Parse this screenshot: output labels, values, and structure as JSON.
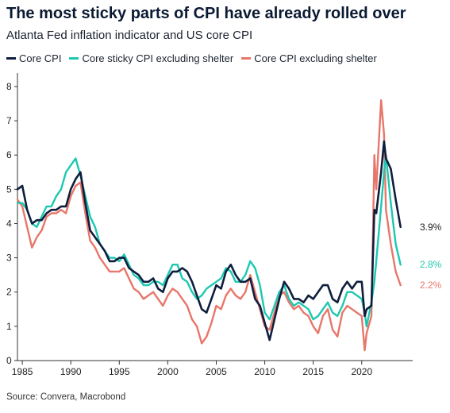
{
  "title": "The most sticky parts of CPI have already rolled over",
  "subtitle": "Atlanta Fed inflation indicator and US core CPI",
  "source": "Source: Convera, Macrobond",
  "colors": {
    "core_cpi": "#0f1e3d",
    "core_sticky_ex_shelter": "#1ec8b0",
    "core_ex_shelter": "#e8766a"
  },
  "legend": [
    {
      "label": "Core CPI",
      "color": "#0f1e3d"
    },
    {
      "label": "Core sticky CPI excluding shelter",
      "color": "#1ec8b0"
    },
    {
      "label": "Core CPI excluding shelter",
      "color": "#e8766a"
    }
  ],
  "end_labels": [
    {
      "text": "3.9%",
      "color": "#222222",
      "value": 3.9
    },
    {
      "text": "2.8%",
      "color": "#1ec8b0",
      "value": 2.8
    },
    {
      "text": "2.2%",
      "color": "#e8766a",
      "value": 2.2
    }
  ],
  "chart_data": {
    "type": "line",
    "xlim": [
      1984.5,
      2024.6
    ],
    "ylim": [
      0,
      8.3
    ],
    "x_ticks": [
      1985,
      1990,
      1995,
      2000,
      2005,
      2010,
      2015,
      2020
    ],
    "y_ticks": [
      0,
      1,
      2,
      3,
      4,
      5,
      6,
      7,
      8
    ],
    "grid": false,
    "legend_position": "top-left",
    "series": [
      {
        "name": "Core CPI",
        "color": "#0f1e3d",
        "x": [
          1984.5,
          1985,
          1985.5,
          1986,
          1986.5,
          1987,
          1987.5,
          1988,
          1988.5,
          1989,
          1989.5,
          1990,
          1990.5,
          1991,
          1991.5,
          1992,
          1992.5,
          1993,
          1993.5,
          1994,
          1994.5,
          1995,
          1995.5,
          1996,
          1996.5,
          1997,
          1997.5,
          1998,
          1998.5,
          1999,
          1999.5,
          2000,
          2000.5,
          2001,
          2001.5,
          2002,
          2002.5,
          2003,
          2003.5,
          2004,
          2004.5,
          2005,
          2005.5,
          2006,
          2006.5,
          2007,
          2007.5,
          2008,
          2008.5,
          2009,
          2009.5,
          2010,
          2010.5,
          2011,
          2011.5,
          2012,
          2012.5,
          2013,
          2013.5,
          2014,
          2014.5,
          2015,
          2015.5,
          2016,
          2016.5,
          2017,
          2017.5,
          2018,
          2018.5,
          2019,
          2019.5,
          2020,
          2020.3,
          2020.5,
          2021,
          2021.3,
          2021.5,
          2022,
          2022.3,
          2022.5,
          2023,
          2023.5,
          2024
        ],
        "y": [
          5.0,
          5.1,
          4.4,
          4.0,
          4.1,
          4.1,
          4.3,
          4.4,
          4.4,
          4.5,
          4.5,
          5.0,
          5.3,
          5.5,
          4.6,
          3.8,
          3.6,
          3.4,
          3.2,
          2.9,
          2.9,
          3.0,
          3.0,
          2.7,
          2.6,
          2.5,
          2.3,
          2.3,
          2.4,
          2.1,
          2.0,
          2.4,
          2.6,
          2.6,
          2.7,
          2.6,
          2.3,
          1.9,
          1.5,
          1.4,
          1.8,
          2.2,
          2.1,
          2.6,
          2.8,
          2.5,
          2.3,
          2.3,
          2.4,
          1.8,
          1.6,
          1.1,
          0.6,
          1.2,
          1.8,
          2.3,
          2.1,
          1.8,
          1.8,
          1.7,
          1.9,
          1.8,
          2.0,
          2.2,
          2.2,
          1.8,
          1.7,
          2.1,
          2.3,
          2.1,
          2.3,
          2.3,
          1.3,
          1.5,
          1.6,
          4.4,
          4.3,
          5.5,
          6.4,
          5.9,
          5.6,
          4.7,
          3.9
        ]
      },
      {
        "name": "Core sticky CPI excluding shelter",
        "color": "#1ec8b0",
        "x": [
          1984.5,
          1985,
          1985.5,
          1986,
          1986.5,
          1987,
          1987.5,
          1988,
          1988.5,
          1989,
          1989.5,
          1990,
          1990.5,
          1991,
          1991.5,
          1992,
          1992.5,
          1993,
          1993.5,
          1994,
          1994.5,
          1995,
          1995.5,
          1996,
          1996.5,
          1997,
          1997.5,
          1998,
          1998.5,
          1999,
          1999.5,
          2000,
          2000.5,
          2001,
          2001.5,
          2002,
          2002.5,
          2003,
          2003.5,
          2004,
          2004.5,
          2005,
          2005.5,
          2006,
          2006.5,
          2007,
          2007.5,
          2008,
          2008.5,
          2009,
          2009.5,
          2010,
          2010.5,
          2011,
          2011.5,
          2012,
          2012.5,
          2013,
          2013.5,
          2014,
          2014.5,
          2015,
          2015.5,
          2016,
          2016.5,
          2017,
          2017.5,
          2018,
          2018.5,
          2019,
          2019.5,
          2020,
          2020.3,
          2020.5,
          2021,
          2021.3,
          2021.5,
          2022,
          2022.3,
          2022.5,
          2023,
          2023.5,
          2024
        ],
        "y": [
          4.6,
          4.6,
          4.4,
          4.0,
          3.9,
          4.2,
          4.5,
          4.5,
          4.8,
          5.0,
          5.5,
          5.7,
          5.9,
          5.4,
          4.8,
          4.2,
          3.9,
          3.4,
          3.2,
          3.0,
          3.0,
          2.9,
          3.1,
          2.8,
          2.5,
          2.4,
          2.2,
          2.2,
          2.3,
          2.3,
          2.2,
          2.5,
          2.8,
          2.8,
          2.4,
          2.3,
          2.0,
          1.8,
          1.9,
          2.1,
          2.2,
          2.3,
          2.4,
          2.7,
          2.6,
          2.3,
          2.3,
          2.5,
          2.9,
          2.7,
          2.2,
          1.4,
          1.2,
          1.6,
          2.0,
          2.2,
          1.8,
          1.6,
          1.7,
          1.6,
          1.5,
          1.2,
          1.3,
          1.5,
          1.7,
          1.4,
          1.3,
          1.6,
          2.0,
          2.0,
          1.9,
          1.8,
          1.4,
          1.0,
          1.7,
          2.3,
          2.9,
          4.5,
          5.5,
          6.0,
          4.6,
          3.4,
          2.8
        ]
      },
      {
        "name": "Core CPI excluding shelter",
        "color": "#e8766a",
        "x": [
          1984.5,
          1985,
          1985.5,
          1986,
          1986.5,
          1987,
          1987.5,
          1988,
          1988.5,
          1989,
          1989.5,
          1990,
          1990.5,
          1991,
          1991.5,
          1992,
          1992.5,
          1993,
          1993.5,
          1994,
          1994.5,
          1995,
          1995.5,
          1996,
          1996.5,
          1997,
          1997.5,
          1998,
          1998.5,
          1999,
          1999.5,
          2000,
          2000.5,
          2001,
          2001.5,
          2002,
          2002.5,
          2003,
          2003.5,
          2004,
          2004.5,
          2005,
          2005.5,
          2006,
          2006.5,
          2007,
          2007.5,
          2008,
          2008.5,
          2009,
          2009.5,
          2010,
          2010.5,
          2011,
          2011.5,
          2012,
          2012.5,
          2013,
          2013.5,
          2014,
          2014.5,
          2015,
          2015.5,
          2016,
          2016.5,
          2017,
          2017.5,
          2018,
          2018.5,
          2019,
          2019.5,
          2020,
          2020.3,
          2020.5,
          2021,
          2021.3,
          2021.5,
          2022,
          2022.3,
          2022.5,
          2023,
          2023.5,
          2024
        ],
        "y": [
          4.7,
          4.5,
          3.9,
          3.3,
          3.6,
          3.8,
          4.2,
          4.3,
          4.3,
          4.4,
          4.3,
          4.8,
          5.1,
          5.2,
          4.3,
          3.5,
          3.3,
          3.0,
          2.8,
          2.6,
          2.6,
          2.6,
          2.7,
          2.4,
          2.1,
          2.0,
          1.8,
          1.9,
          2.0,
          1.8,
          1.6,
          1.9,
          2.1,
          2.0,
          1.8,
          1.6,
          1.2,
          1.0,
          0.5,
          0.7,
          1.1,
          1.6,
          1.5,
          1.9,
          2.1,
          1.9,
          1.8,
          2.0,
          2.5,
          2.0,
          1.5,
          1.0,
          0.9,
          1.4,
          1.9,
          2.0,
          1.7,
          1.5,
          1.6,
          1.4,
          1.3,
          1.0,
          0.8,
          1.3,
          1.5,
          0.9,
          0.7,
          1.4,
          1.6,
          1.5,
          1.4,
          1.3,
          0.3,
          0.8,
          1.3,
          6.0,
          5.0,
          7.6,
          6.6,
          4.4,
          3.4,
          2.6,
          2.2
        ]
      }
    ]
  }
}
